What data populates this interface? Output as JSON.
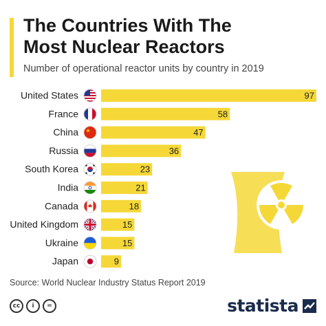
{
  "header": {
    "title_line1": "The Countries With The",
    "title_line2": "Most Nuclear Reactors",
    "subtitle": "Number of operational reactor units by country in 2019"
  },
  "chart_data": {
    "type": "bar",
    "orientation": "horizontal",
    "categories": [
      "United States",
      "France",
      "China",
      "Russia",
      "South Korea",
      "India",
      "Canada",
      "United Kingdom",
      "Ukraine",
      "Japan"
    ],
    "values": [
      97,
      58,
      47,
      36,
      23,
      21,
      18,
      15,
      15,
      9
    ],
    "title": "The Countries With The Most Nuclear Reactors",
    "subtitle": "Number of operational reactor units by country in 2019",
    "xlim": [
      0,
      97
    ],
    "grid": false,
    "legend": "none",
    "data_labels": true,
    "flags": [
      "us-flag-icon",
      "france-flag-icon",
      "china-flag-icon",
      "russia-flag-icon",
      "south-korea-flag-icon",
      "india-flag-icon",
      "canada-flag-icon",
      "uk-flag-icon",
      "ukraine-flag-icon",
      "japan-flag-icon"
    ]
  },
  "footer": {
    "source": "Source: World Nuclear Industry Status Report 2019",
    "brand": "statista",
    "license_icons": [
      "cc-icon",
      "by-icon",
      "nd-icon"
    ]
  },
  "colors": {
    "bar": "#f5d838",
    "accent": "#f5d838",
    "reactor": "#f5d838",
    "brand": "#1a2b4c"
  }
}
